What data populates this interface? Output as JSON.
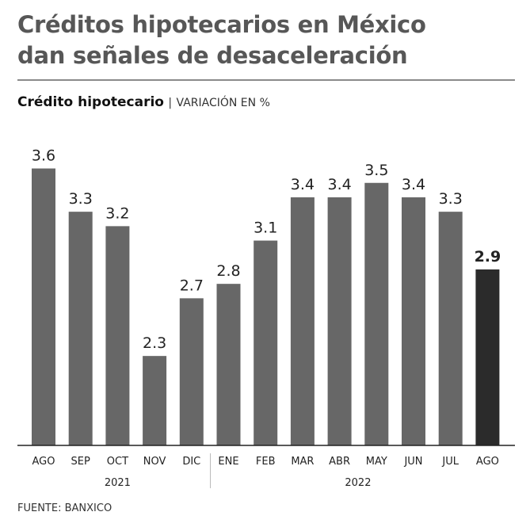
{
  "title_line1": "Créditos hipotecarios en México",
  "title_line2": "dan señales de desaceleración",
  "subtitle_bold": "Crédito hipotecario",
  "subtitle_sep": "|",
  "subtitle_unit": "VARIACIÓN EN %",
  "source": "FUENTE: BANXICO",
  "chart_data": {
    "type": "bar",
    "categories": [
      "AGO",
      "SEP",
      "OCT",
      "NOV",
      "DIC",
      "ENE",
      "FEB",
      "MAR",
      "ABR",
      "MAY",
      "JUN",
      "JUL",
      "AGO"
    ],
    "values": [
      3.6,
      3.3,
      3.2,
      2.3,
      2.7,
      2.8,
      3.1,
      3.4,
      3.4,
      3.5,
      3.4,
      3.3,
      2.9
    ],
    "labels": [
      "3.6",
      "3.3",
      "3.2",
      "2.3",
      "2.7",
      "2.8",
      "3.1",
      "3.4",
      "3.4",
      "3.5",
      "3.4",
      "3.3",
      "2.9"
    ],
    "year_groups": [
      {
        "label": "2021",
        "count": 5
      },
      {
        "label": "2022",
        "count": 8
      }
    ],
    "highlight_index": 12,
    "colors": {
      "bar": "#676767",
      "highlight": "#2b2b2b"
    },
    "ylabel": "Variación en %",
    "ylim": [
      1.68,
      3.8
    ]
  }
}
